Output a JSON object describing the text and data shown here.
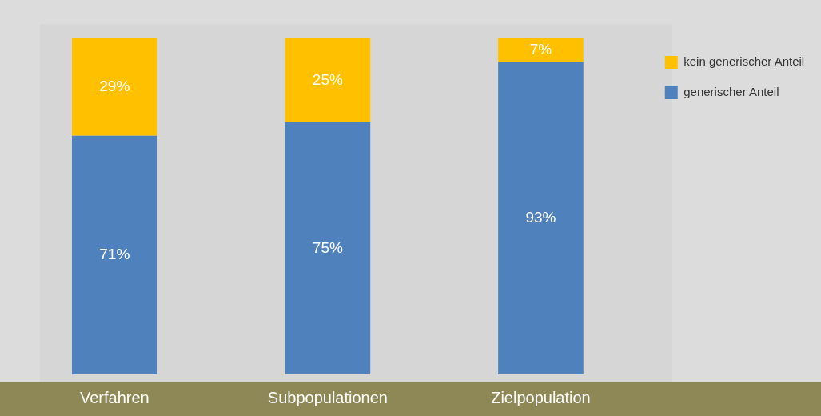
{
  "chart_data": {
    "type": "bar",
    "stacked": true,
    "categories": [
      "Verfahren",
      "Subpopulationen",
      "Zielpopulation"
    ],
    "series": [
      {
        "name": "generischer Anteil",
        "color": "#4f81bd",
        "values": [
          71,
          75,
          93
        ],
        "value_labels": [
          "71%",
          "75%",
          "93%"
        ]
      },
      {
        "name": "kein generischer Anteil",
        "color": "#ffc000",
        "values": [
          29,
          25,
          7
        ],
        "value_labels": [
          "29%",
          "25%",
          "7%"
        ]
      }
    ],
    "legend": "top right"
  }
}
